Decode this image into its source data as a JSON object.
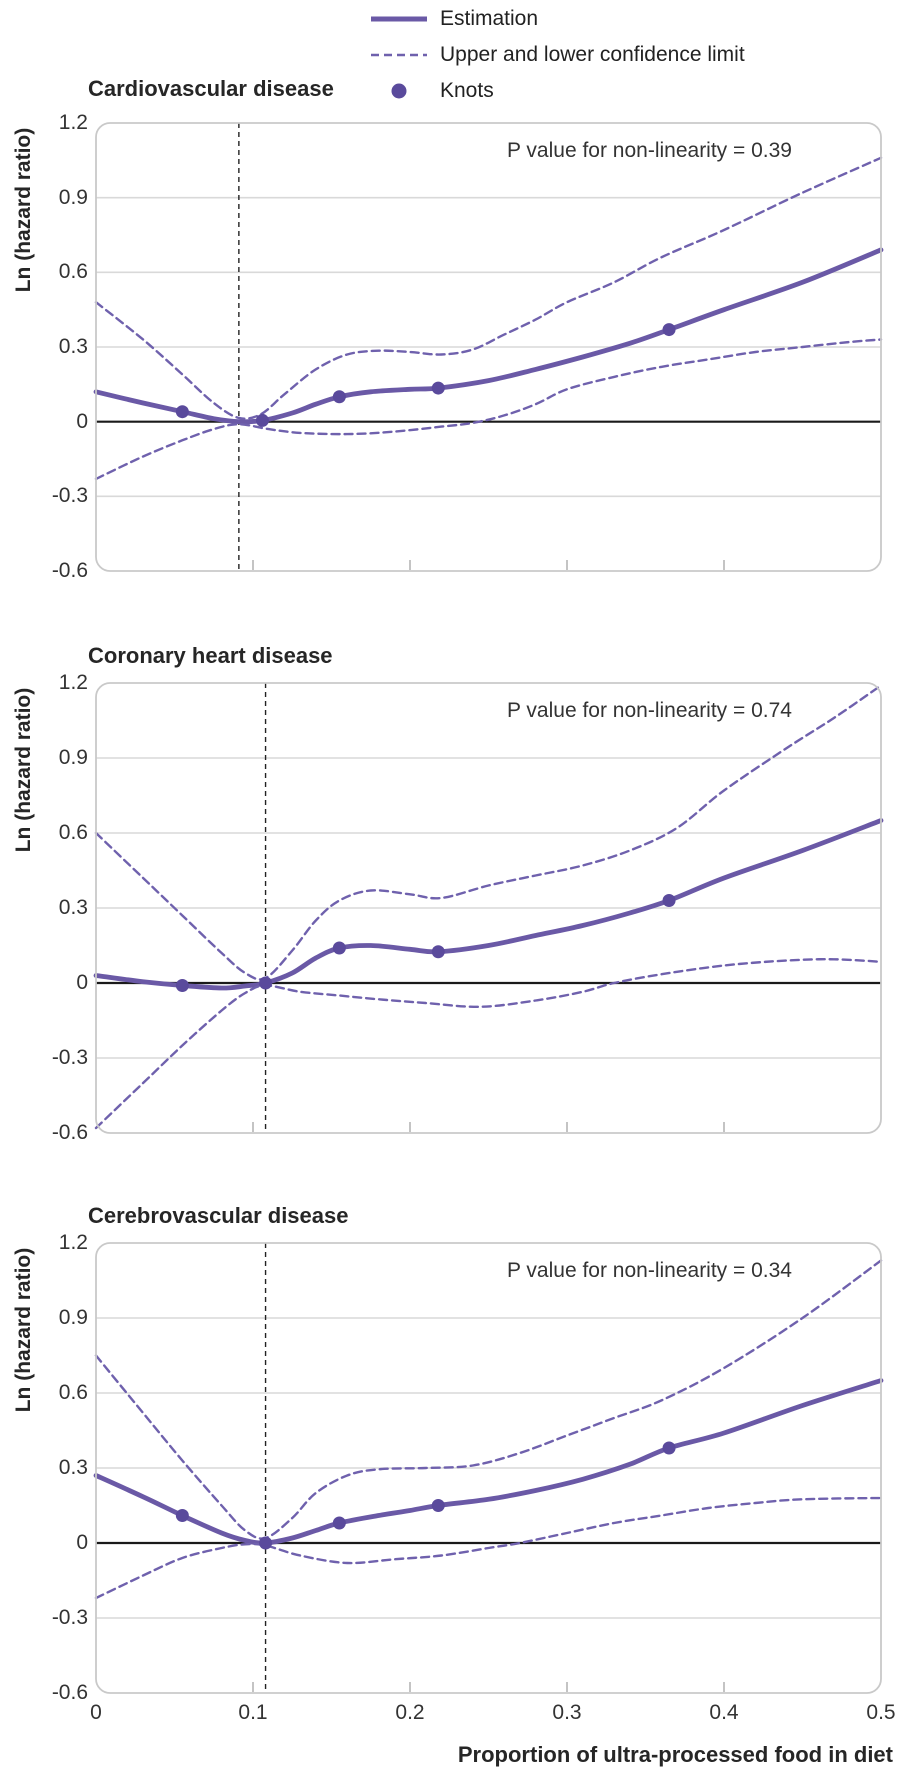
{
  "legend": {
    "estimation_label": "Estimation",
    "ci_label": "Upper and lower confidence limit",
    "knots_label": "Knots"
  },
  "y_axis": {
    "label": "Ln (hazard ratio)",
    "tick_labels": [
      "1.2",
      "0.9",
      "0.6",
      "0.3",
      "0",
      "-0.3",
      "-0.6"
    ],
    "tick_values": [
      1.2,
      0.9,
      0.6,
      0.3,
      0,
      -0.3,
      -0.6
    ]
  },
  "x_axis": {
    "label": "Proportion of ultra-processed food in diet",
    "tick_labels": [
      "0",
      "0.1",
      "0.2",
      "0.3",
      "0.4",
      "0.5"
    ],
    "tick_values": [
      0,
      0.1,
      0.2,
      0.3,
      0.4,
      0.5
    ]
  },
  "colors": {
    "estimation_line": "#6a59a6",
    "ci_line": "#6f61ad",
    "knot_dot": "#5a4a9c",
    "grid_line": "#d9d9d9",
    "zero_line": "#1a1a1a",
    "box_border": "#c9c9c9",
    "ref_line": "#222222",
    "tick_mark": "#c4c4c4"
  },
  "chart_data": [
    {
      "type": "line",
      "title": "Cardiovascular disease",
      "p_value_label": "P value for non-linearity = 0.39",
      "p_value": 0.39,
      "xlabel": "Proportion of ultra-processed food in diet",
      "ylabel": "Ln (hazard ratio)",
      "xlim": [
        0,
        0.5
      ],
      "ylim": [
        -0.6,
        1.2
      ],
      "grid": true,
      "reference_line_x": 0.091,
      "series": [
        {
          "name": "Estimation",
          "style": "solid",
          "points": [
            [
              0,
              0.12
            ],
            [
              0.03,
              0.075
            ],
            [
              0.055,
              0.04
            ],
            [
              0.075,
              0.012
            ],
            [
              0.091,
              0
            ],
            [
              0.106,
              0.005
            ],
            [
              0.125,
              0.035
            ],
            [
              0.14,
              0.07
            ],
            [
              0.155,
              0.1
            ],
            [
              0.175,
              0.12
            ],
            [
              0.2,
              0.13
            ],
            [
              0.218,
              0.135
            ],
            [
              0.25,
              0.165
            ],
            [
              0.28,
              0.21
            ],
            [
              0.31,
              0.26
            ],
            [
              0.34,
              0.315
            ],
            [
              0.365,
              0.37
            ],
            [
              0.4,
              0.45
            ],
            [
              0.45,
              0.56
            ],
            [
              0.5,
              0.69
            ]
          ]
        },
        {
          "name": "Upper confidence limit",
          "style": "dashed",
          "points": [
            [
              0,
              0.48
            ],
            [
              0.03,
              0.33
            ],
            [
              0.055,
              0.19
            ],
            [
              0.075,
              0.075
            ],
            [
              0.091,
              0.015
            ],
            [
              0.105,
              0.03
            ],
            [
              0.12,
              0.11
            ],
            [
              0.14,
              0.21
            ],
            [
              0.16,
              0.27
            ],
            [
              0.18,
              0.285
            ],
            [
              0.2,
              0.28
            ],
            [
              0.22,
              0.27
            ],
            [
              0.24,
              0.29
            ],
            [
              0.26,
              0.35
            ],
            [
              0.28,
              0.41
            ],
            [
              0.3,
              0.48
            ],
            [
              0.33,
              0.56
            ],
            [
              0.36,
              0.66
            ],
            [
              0.4,
              0.77
            ],
            [
              0.45,
              0.92
            ],
            [
              0.5,
              1.06
            ]
          ]
        },
        {
          "name": "Lower confidence limit",
          "style": "dashed",
          "points": [
            [
              0,
              -0.23
            ],
            [
              0.03,
              -0.14
            ],
            [
              0.055,
              -0.075
            ],
            [
              0.075,
              -0.03
            ],
            [
              0.091,
              -0.01
            ],
            [
              0.11,
              -0.03
            ],
            [
              0.13,
              -0.045
            ],
            [
              0.16,
              -0.05
            ],
            [
              0.19,
              -0.04
            ],
            [
              0.22,
              -0.02
            ],
            [
              0.24,
              -0.005
            ],
            [
              0.26,
              0.025
            ],
            [
              0.28,
              0.07
            ],
            [
              0.3,
              0.13
            ],
            [
              0.33,
              0.18
            ],
            [
              0.36,
              0.22
            ],
            [
              0.39,
              0.25
            ],
            [
              0.42,
              0.28
            ],
            [
              0.45,
              0.3
            ],
            [
              0.48,
              0.32
            ],
            [
              0.5,
              0.33
            ]
          ]
        }
      ],
      "knots": [
        [
          0.055,
          0.04
        ],
        [
          0.106,
          0.005
        ],
        [
          0.155,
          0.1
        ],
        [
          0.218,
          0.135
        ],
        [
          0.365,
          0.37
        ]
      ]
    },
    {
      "type": "line",
      "title": "Coronary heart disease",
      "p_value_label": "P value for non-linearity = 0.74",
      "p_value": 0.74,
      "xlabel": "Proportion of ultra-processed food in diet",
      "ylabel": "Ln (hazard ratio)",
      "xlim": [
        0,
        0.5
      ],
      "ylim": [
        -0.6,
        1.2
      ],
      "grid": true,
      "reference_line_x": 0.108,
      "series": [
        {
          "name": "Estimation",
          "style": "solid",
          "points": [
            [
              0,
              0.03
            ],
            [
              0.03,
              0.005
            ],
            [
              0.055,
              -0.01
            ],
            [
              0.08,
              -0.02
            ],
            [
              0.095,
              -0.012
            ],
            [
              0.108,
              0
            ],
            [
              0.125,
              0.04
            ],
            [
              0.14,
              0.1
            ],
            [
              0.155,
              0.14
            ],
            [
              0.175,
              0.15
            ],
            [
              0.2,
              0.135
            ],
            [
              0.218,
              0.125
            ],
            [
              0.25,
              0.15
            ],
            [
              0.28,
              0.19
            ],
            [
              0.31,
              0.23
            ],
            [
              0.34,
              0.28
            ],
            [
              0.365,
              0.33
            ],
            [
              0.4,
              0.42
            ],
            [
              0.45,
              0.53
            ],
            [
              0.5,
              0.65
            ]
          ]
        },
        {
          "name": "Upper confidence limit",
          "style": "dashed",
          "points": [
            [
              0,
              0.6
            ],
            [
              0.03,
              0.42
            ],
            [
              0.055,
              0.27
            ],
            [
              0.08,
              0.12
            ],
            [
              0.095,
              0.04
            ],
            [
              0.108,
              0.02
            ],
            [
              0.125,
              0.13
            ],
            [
              0.14,
              0.25
            ],
            [
              0.155,
              0.33
            ],
            [
              0.175,
              0.37
            ],
            [
              0.2,
              0.355
            ],
            [
              0.22,
              0.34
            ],
            [
              0.25,
              0.39
            ],
            [
              0.28,
              0.43
            ],
            [
              0.31,
              0.47
            ],
            [
              0.34,
              0.53
            ],
            [
              0.37,
              0.62
            ],
            [
              0.4,
              0.77
            ],
            [
              0.44,
              0.94
            ],
            [
              0.47,
              1.06
            ],
            [
              0.5,
              1.19
            ]
          ]
        },
        {
          "name": "Lower confidence limit",
          "style": "dashed",
          "points": [
            [
              0,
              -0.58
            ],
            [
              0.03,
              -0.4
            ],
            [
              0.055,
              -0.25
            ],
            [
              0.08,
              -0.11
            ],
            [
              0.095,
              -0.04
            ],
            [
              0.108,
              -0.01
            ],
            [
              0.13,
              -0.035
            ],
            [
              0.155,
              -0.05
            ],
            [
              0.18,
              -0.065
            ],
            [
              0.21,
              -0.08
            ],
            [
              0.245,
              -0.095
            ],
            [
              0.28,
              -0.07
            ],
            [
              0.31,
              -0.035
            ],
            [
              0.33,
              0
            ],
            [
              0.36,
              0.035
            ],
            [
              0.4,
              0.07
            ],
            [
              0.44,
              0.09
            ],
            [
              0.47,
              0.095
            ],
            [
              0.5,
              0.085
            ]
          ]
        }
      ],
      "knots": [
        [
          0.055,
          -0.01
        ],
        [
          0.108,
          0
        ],
        [
          0.155,
          0.14
        ],
        [
          0.218,
          0.125
        ],
        [
          0.365,
          0.33
        ]
      ]
    },
    {
      "type": "line",
      "title": "Cerebrovascular disease",
      "p_value_label": "P value for non-linearity = 0.34",
      "p_value": 0.34,
      "xlabel": "Proportion of ultra-processed food in diet",
      "ylabel": "Ln (hazard ratio)",
      "xlim": [
        0,
        0.5
      ],
      "ylim": [
        -0.6,
        1.2
      ],
      "grid": true,
      "reference_line_x": 0.108,
      "series": [
        {
          "name": "Estimation",
          "style": "solid",
          "points": [
            [
              0,
              0.27
            ],
            [
              0.03,
              0.185
            ],
            [
              0.055,
              0.11
            ],
            [
              0.08,
              0.04
            ],
            [
              0.095,
              0.01
            ],
            [
              0.108,
              0
            ],
            [
              0.125,
              0.02
            ],
            [
              0.14,
              0.05
            ],
            [
              0.155,
              0.08
            ],
            [
              0.18,
              0.11
            ],
            [
              0.2,
              0.13
            ],
            [
              0.218,
              0.15
            ],
            [
              0.25,
              0.175
            ],
            [
              0.28,
              0.21
            ],
            [
              0.31,
              0.255
            ],
            [
              0.34,
              0.315
            ],
            [
              0.365,
              0.38
            ],
            [
              0.4,
              0.44
            ],
            [
              0.45,
              0.55
            ],
            [
              0.5,
              0.65
            ]
          ]
        },
        {
          "name": "Upper confidence limit",
          "style": "dashed",
          "points": [
            [
              0,
              0.75
            ],
            [
              0.03,
              0.52
            ],
            [
              0.055,
              0.33
            ],
            [
              0.08,
              0.15
            ],
            [
              0.095,
              0.05
            ],
            [
              0.108,
              0.02
            ],
            [
              0.125,
              0.1
            ],
            [
              0.14,
              0.2
            ],
            [
              0.16,
              0.27
            ],
            [
              0.18,
              0.295
            ],
            [
              0.21,
              0.3
            ],
            [
              0.24,
              0.31
            ],
            [
              0.27,
              0.36
            ],
            [
              0.3,
              0.43
            ],
            [
              0.33,
              0.5
            ],
            [
              0.36,
              0.57
            ],
            [
              0.4,
              0.7
            ],
            [
              0.45,
              0.9
            ],
            [
              0.5,
              1.13
            ]
          ]
        },
        {
          "name": "Lower confidence limit",
          "style": "dashed",
          "points": [
            [
              0,
              -0.22
            ],
            [
              0.03,
              -0.13
            ],
            [
              0.055,
              -0.06
            ],
            [
              0.08,
              -0.02
            ],
            [
              0.095,
              -0.005
            ],
            [
              0.108,
              -0.01
            ],
            [
              0.13,
              -0.05
            ],
            [
              0.16,
              -0.08
            ],
            [
              0.19,
              -0.065
            ],
            [
              0.22,
              -0.05
            ],
            [
              0.25,
              -0.02
            ],
            [
              0.27,
              0
            ],
            [
              0.3,
              0.04
            ],
            [
              0.33,
              0.08
            ],
            [
              0.36,
              0.11
            ],
            [
              0.39,
              0.14
            ],
            [
              0.42,
              0.16
            ],
            [
              0.45,
              0.175
            ],
            [
              0.5,
              0.18
            ]
          ]
        }
      ],
      "knots": [
        [
          0.055,
          0.11
        ],
        [
          0.108,
          0
        ],
        [
          0.155,
          0.08
        ],
        [
          0.218,
          0.15
        ],
        [
          0.365,
          0.38
        ]
      ]
    }
  ]
}
